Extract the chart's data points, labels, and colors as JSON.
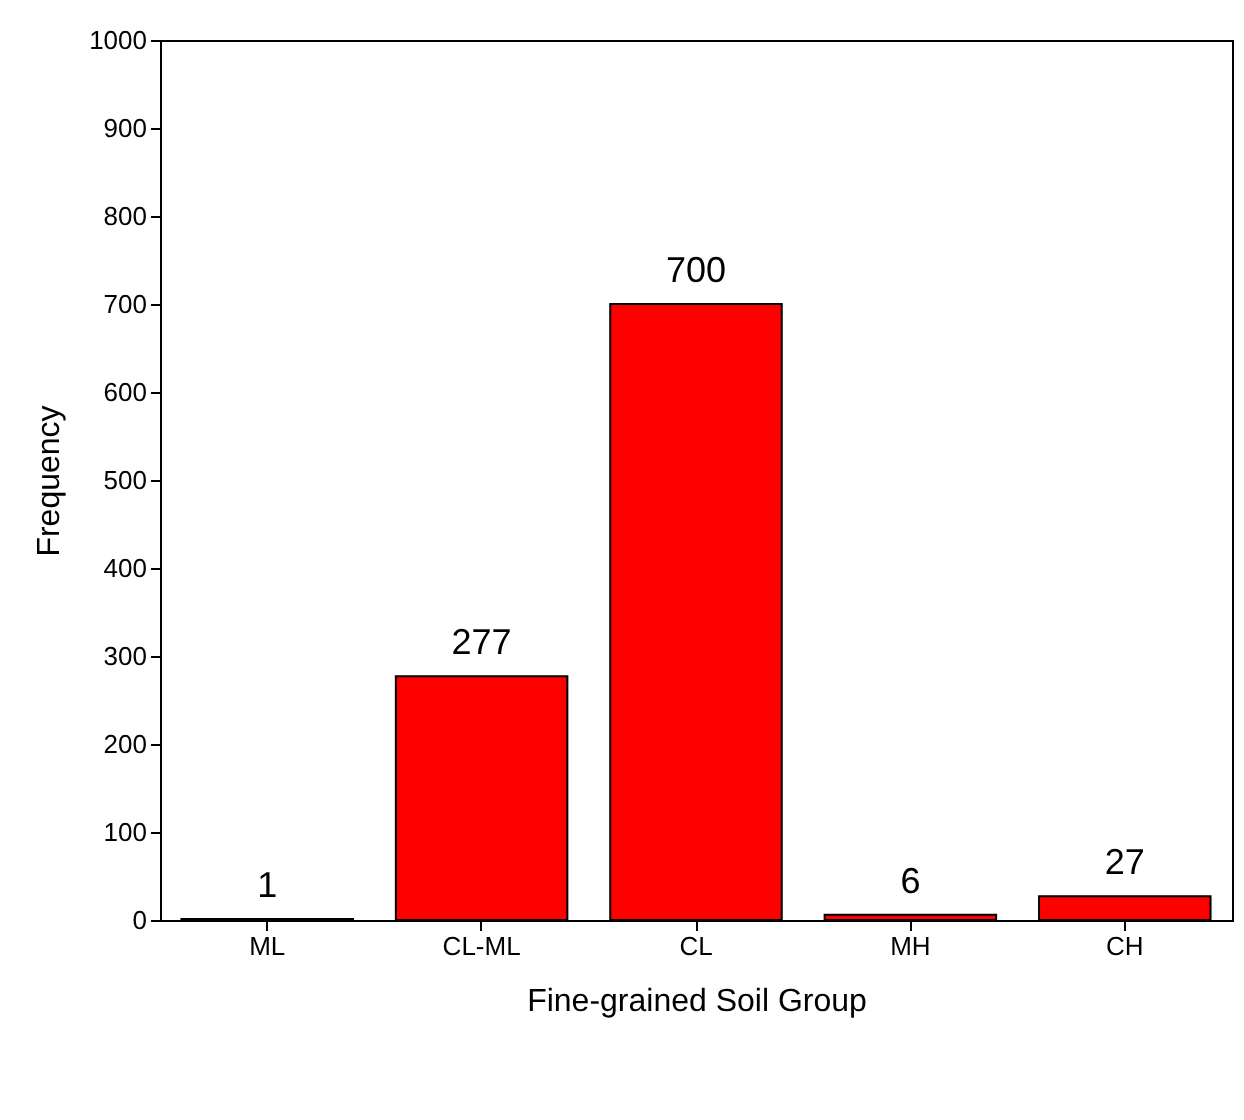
{
  "chart_data": {
    "type": "bar",
    "xlabel": "Fine-grained Soil Group",
    "ylabel": "Frequency",
    "categories": [
      "ML",
      "CL-ML",
      "CL",
      "MH",
      "CH"
    ],
    "values": [
      1,
      277,
      700,
      6,
      27
    ],
    "color": "#ff0000",
    "data_labels": true,
    "ylim": [
      0,
      1000
    ],
    "yticks": [
      0,
      100,
      200,
      300,
      400,
      500,
      600,
      700,
      800,
      900,
      1000
    ],
    "grid": false
  }
}
